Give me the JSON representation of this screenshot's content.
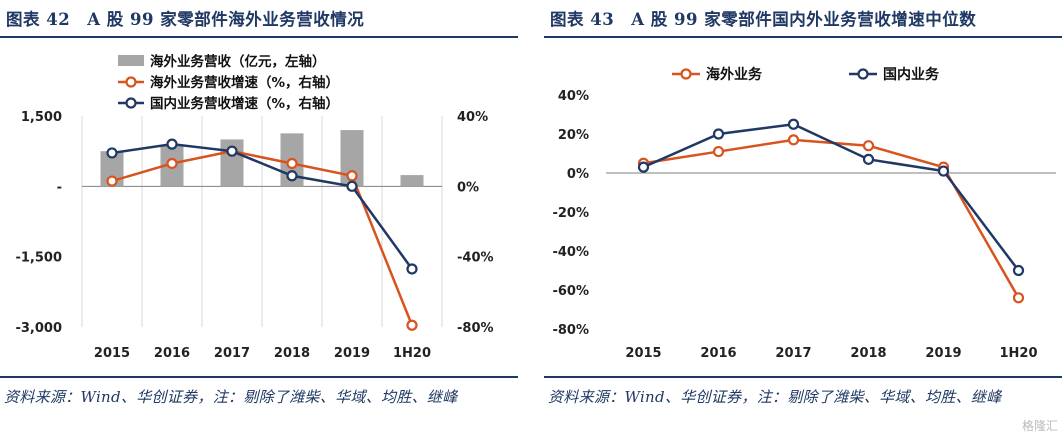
{
  "chart_data": [
    {
      "type": "bar+line",
      "title": "图表 42　A 股 99 家零部件海外业务营收情况",
      "categories": [
        "2015",
        "2016",
        "2017",
        "2018",
        "2019",
        "1H20"
      ],
      "left_axis": {
        "ylim": [
          -3000,
          1500
        ],
        "ticks": [
          "1,500",
          "-",
          "-1,500",
          "-3,000"
        ],
        "tick_values": [
          1500,
          0,
          -1500,
          -3000
        ]
      },
      "right_axis": {
        "ylim": [
          -80,
          40
        ],
        "ticks": [
          "40%",
          "0%",
          "-40%",
          "-80%"
        ],
        "tick_values": [
          40,
          0,
          -40,
          -80
        ]
      },
      "series": [
        {
          "name": "海外业务营收（亿元，左轴）",
          "kind": "bar",
          "axis": "left",
          "color": "#a6a6a6",
          "values": [
            750,
            870,
            1000,
            1130,
            1200,
            240
          ]
        },
        {
          "name": "海外业务营收增速（%，右轴）",
          "kind": "line",
          "axis": "right",
          "color": "#d9531e",
          "values": [
            3,
            13,
            20,
            13,
            6,
            -79
          ]
        },
        {
          "name": "国内业务营收增速（%，右轴）",
          "kind": "line",
          "axis": "right",
          "color": "#1f3864",
          "values": [
            19,
            24,
            20,
            6,
            0,
            -47
          ]
        }
      ],
      "source": "资料来源：Wind、华创证券，注：剔除了潍柴、华域、均胜、继峰"
    },
    {
      "type": "line",
      "title": "图表 43　A 股 99 家零部件国内外业务营收增速中位数",
      "categories": [
        "2015",
        "2016",
        "2017",
        "2018",
        "2019",
        "1H20"
      ],
      "y_axis": {
        "ylim": [
          -80,
          40
        ],
        "ticks": [
          "40%",
          "20%",
          "0%",
          "-20%",
          "-40%",
          "-60%",
          "-80%"
        ],
        "tick_values": [
          40,
          20,
          0,
          -20,
          -40,
          -60,
          -80
        ]
      },
      "series": [
        {
          "name": "海外业务",
          "color": "#d9531e",
          "values": [
            5,
            11,
            17,
            14,
            3,
            -64
          ]
        },
        {
          "name": "国内业务",
          "color": "#1f3864",
          "values": [
            3,
            20,
            25,
            7,
            1,
            -50
          ]
        }
      ],
      "source": "资料来源：Wind、华创证券，注：剔除了潍柴、华域、均胜、继峰"
    }
  ],
  "watermark": "格隆汇"
}
